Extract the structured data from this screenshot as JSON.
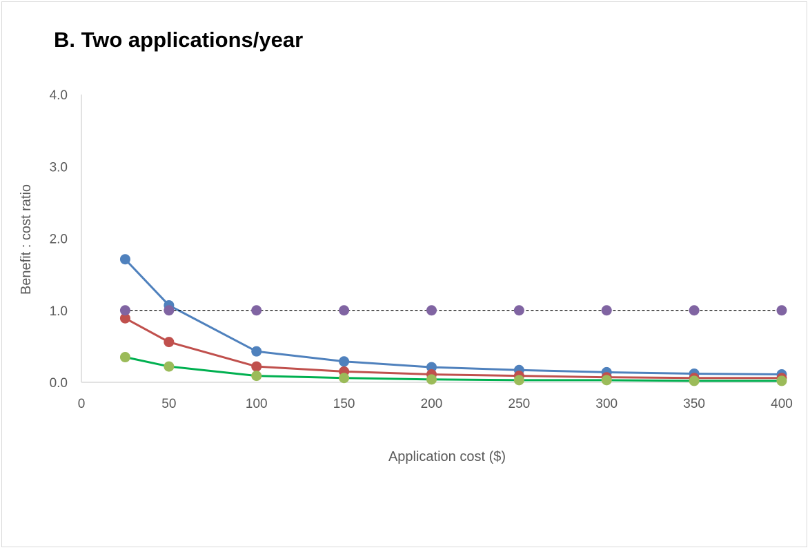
{
  "chart_data": {
    "type": "line",
    "title": "B. Two applications/year",
    "xlabel": "Application cost ($)",
    "ylabel": "Benefit : cost ratio",
    "xlim": [
      0,
      400
    ],
    "ylim": [
      0,
      4
    ],
    "x_ticks": [
      "0",
      "50",
      "100",
      "150",
      "200",
      "250",
      "300",
      "350",
      "400"
    ],
    "y_ticks": [
      "0.0",
      "1.0",
      "2.0",
      "3.0",
      "4.0"
    ],
    "grid": false,
    "legend": "none",
    "x": [
      25,
      50,
      100,
      150,
      200,
      250,
      300,
      350,
      400
    ],
    "series": [
      {
        "color": "#4f81bd",
        "style": "solid",
        "values": [
          1.71,
          1.07,
          0.43,
          0.29,
          0.21,
          0.17,
          0.14,
          0.12,
          0.11
        ]
      },
      {
        "color": "#c0504d",
        "style": "solid",
        "values": [
          0.89,
          0.56,
          0.22,
          0.15,
          0.11,
          0.09,
          0.07,
          0.06,
          0.06
        ]
      },
      {
        "color": "#00b050",
        "marker_color": "#9bbb59",
        "style": "solid",
        "values": [
          0.35,
          0.22,
          0.09,
          0.06,
          0.04,
          0.03,
          0.03,
          0.02,
          0.02
        ]
      },
      {
        "color": "#000000",
        "marker_color": "#8064a2",
        "style": "dashed",
        "values": [
          1.0,
          1.0,
          1.0,
          1.0,
          1.0,
          1.0,
          1.0,
          1.0,
          1.0
        ]
      }
    ]
  }
}
